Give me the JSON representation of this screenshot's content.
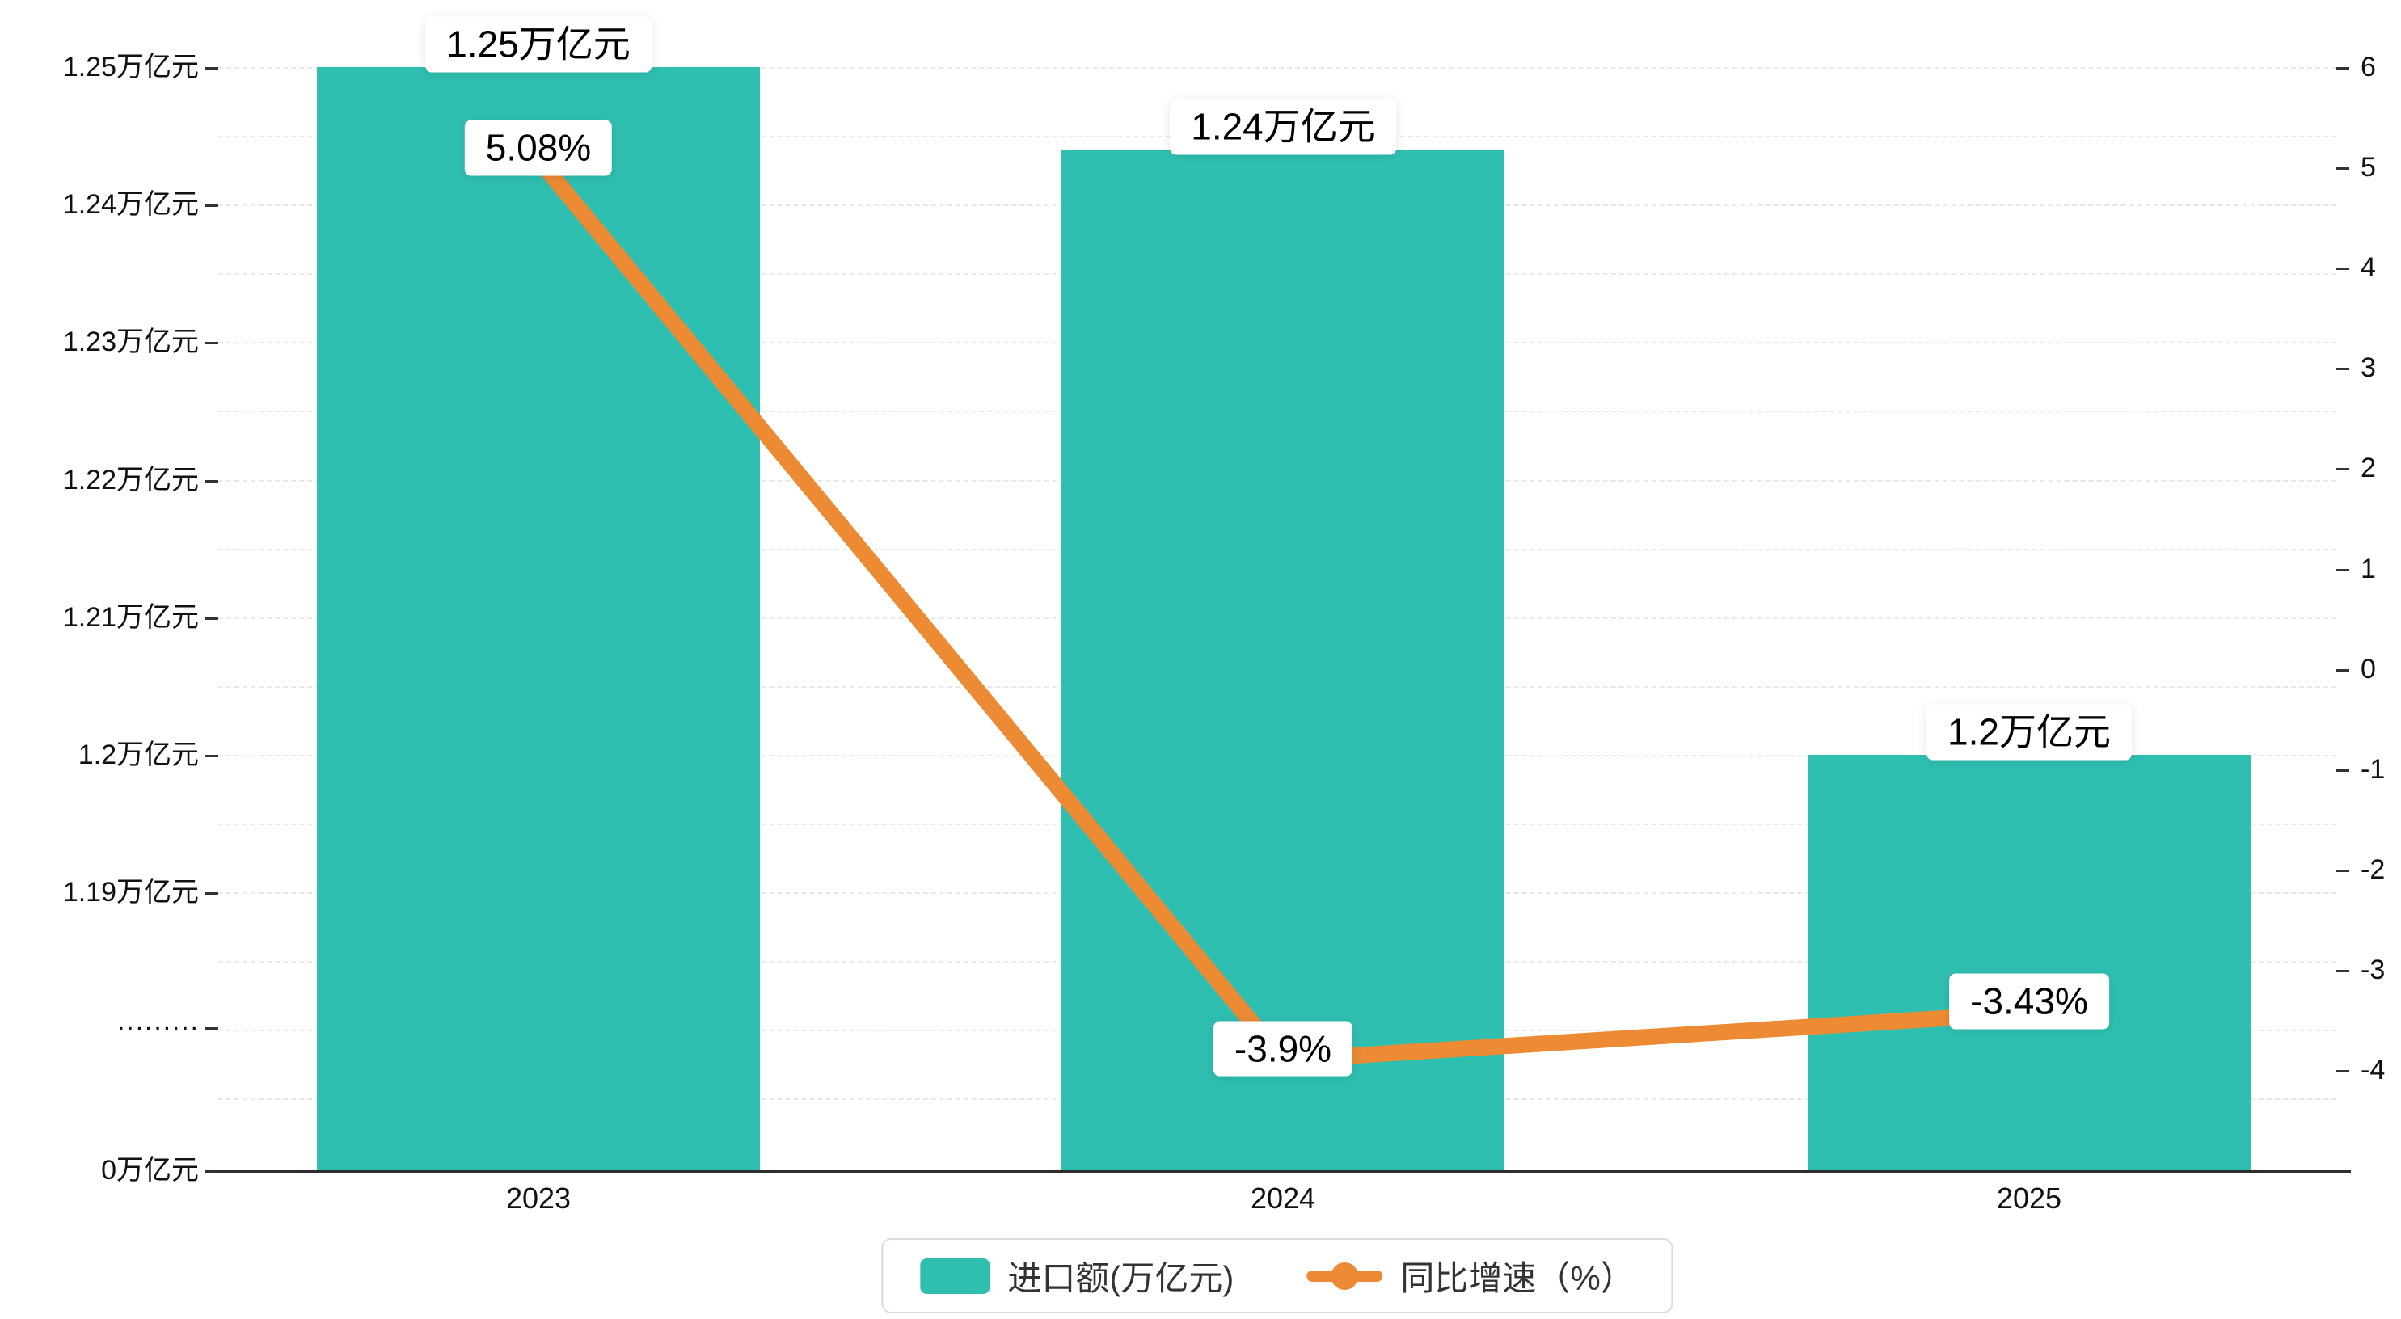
{
  "chart_data": {
    "type": "bar",
    "subtype": "bar-line-combo",
    "categories": [
      "2023",
      "2024",
      "2025"
    ],
    "series": [
      {
        "name": "进口额(万亿元)",
        "type": "bar",
        "axis": "left",
        "color": "#2fbfb1",
        "values": [
          1.25,
          1.244,
          1.2
        ],
        "value_labels": [
          "1.25万亿元",
          "1.24万亿元",
          "1.2万亿元"
        ]
      },
      {
        "name": "同比增速（%）",
        "type": "line",
        "axis": "right",
        "color": "#ec8b33",
        "values": [
          5.08,
          -3.9,
          -3.43
        ],
        "value_labels": [
          "5.08%",
          "-3.9%",
          "-3.43%"
        ]
      }
    ],
    "left_axis": {
      "tick_labels": [
        "1.25万亿元",
        "1.24万亿元",
        "1.23万亿元",
        "1.22万亿元",
        "1.21万亿元",
        "1.2万亿元",
        "1.19万亿元",
        "·········",
        "0万亿元"
      ],
      "has_break": true
    },
    "right_axis": {
      "min": -4,
      "max": 6,
      "tick_labels": [
        "6",
        "5",
        "4",
        "3",
        "2",
        "1",
        "0",
        "-1",
        "-2",
        "-3",
        "-4"
      ]
    },
    "legend": [
      {
        "label": "进口额(万亿元)",
        "marker": "rect",
        "color": "#2fbfb1"
      },
      {
        "label": "同比增速（%）",
        "marker": "line-dot",
        "color": "#ec8b33"
      }
    ],
    "grid": "dashed-horizontal",
    "title": ""
  }
}
